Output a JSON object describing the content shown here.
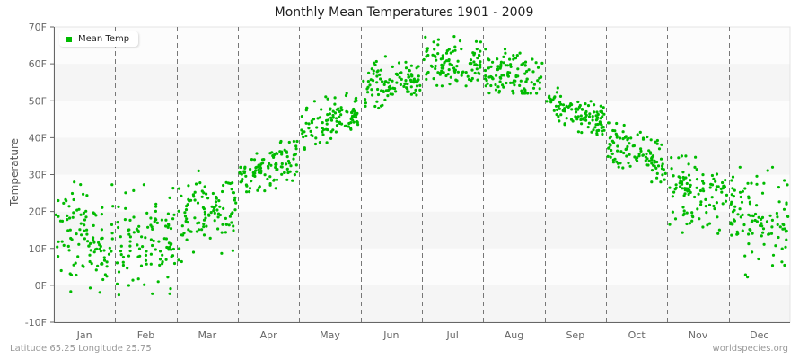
{
  "header": {
    "title": "Monthly Mean Temperatures 1901 - 2009"
  },
  "legend": {
    "label": "Mean Temp",
    "color": "#00bb00"
  },
  "footer": {
    "location": "Latitude 65.25 Longitude 25.75",
    "source": "worldspecies.org"
  },
  "chart_data": {
    "type": "scatter",
    "title": "Monthly Mean Temperatures 1901 - 2009",
    "xlabel": "",
    "ylabel": "Temperature",
    "ylim": [
      -10,
      70
    ],
    "yticks": [
      "-10F",
      "0F",
      "10F",
      "20F",
      "30F",
      "40F",
      "50F",
      "60F",
      "70F"
    ],
    "categories": [
      "Jan",
      "Feb",
      "Mar",
      "Apr",
      "May",
      "Jun",
      "Jul",
      "Aug",
      "Sep",
      "Oct",
      "Nov",
      "Dec"
    ],
    "legend_position": "top-left",
    "grid": "alternating horizontal bands, dashed vertical month dividers",
    "series": [
      {
        "name": "Mean Temp",
        "color": "#00bb00",
        "years": "1901-2009",
        "points_per_month": 109,
        "monthly_mean": [
          13,
          12,
          20,
          32,
          44,
          55,
          60,
          57,
          47,
          36,
          25,
          18
        ],
        "monthly_min": [
          -7,
          -5,
          5,
          24,
          36,
          48,
          54,
          52,
          40,
          28,
          14,
          -2
        ],
        "monthly_max": [
          28,
          31,
          31,
          39,
          52,
          62,
          68,
          64,
          54,
          44,
          35,
          32
        ],
        "monthly_spread": [
          6.5,
          6.5,
          5,
          3,
          3,
          3,
          3,
          3,
          2.5,
          3.5,
          4.5,
          6.5
        ]
      }
    ]
  }
}
